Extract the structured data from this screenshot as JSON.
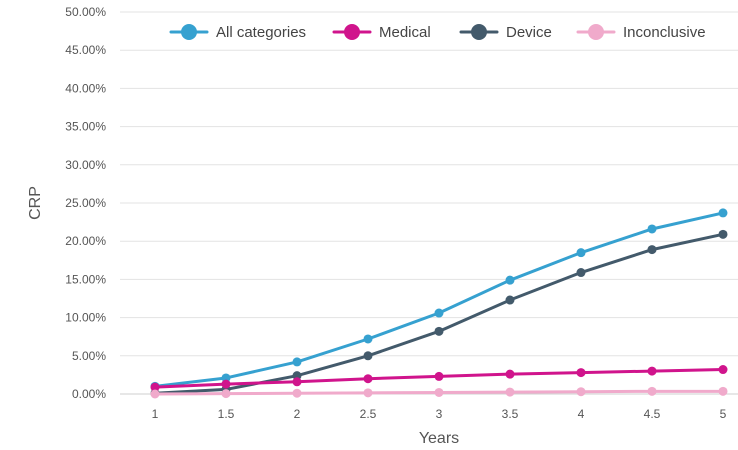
{
  "chart_data": {
    "type": "line",
    "xlabel": "Years",
    "ylabel": "CRP",
    "x": [
      1,
      1.5,
      2,
      2.5,
      3,
      3.5,
      4,
      4.5,
      5
    ],
    "x_tick_labels": [
      "1",
      "1.5",
      "2",
      "2.5",
      "3",
      "3.5",
      "4",
      "4.5",
      "5"
    ],
    "ylim": [
      0,
      50
    ],
    "y_tick_labels": [
      "0.00%",
      "5.00%",
      "10.00%",
      "15.00%",
      "20.00%",
      "25.00%",
      "30.00%",
      "35.00%",
      "40.00%",
      "45.00%",
      "50.00%"
    ],
    "y_unit": "%",
    "grid": "horizontal",
    "legend_position": "top",
    "series": [
      {
        "name": "All categories",
        "color": "#36a1d0",
        "values": [
          1.0,
          2.1,
          4.2,
          7.2,
          10.6,
          14.9,
          18.5,
          21.6,
          23.7
        ]
      },
      {
        "name": "Medical",
        "color": "#d0148c",
        "values": [
          0.9,
          1.3,
          1.6,
          2.0,
          2.3,
          2.6,
          2.8,
          3.0,
          3.2
        ]
      },
      {
        "name": "Device",
        "color": "#435a6b",
        "values": [
          0.1,
          0.6,
          2.4,
          5.0,
          8.2,
          12.3,
          15.9,
          18.9,
          20.9
        ]
      },
      {
        "name": "Inconclusive",
        "color": "#f0aacb",
        "values": [
          0.0,
          0.05,
          0.1,
          0.15,
          0.2,
          0.25,
          0.3,
          0.35,
          0.35
        ]
      }
    ]
  }
}
